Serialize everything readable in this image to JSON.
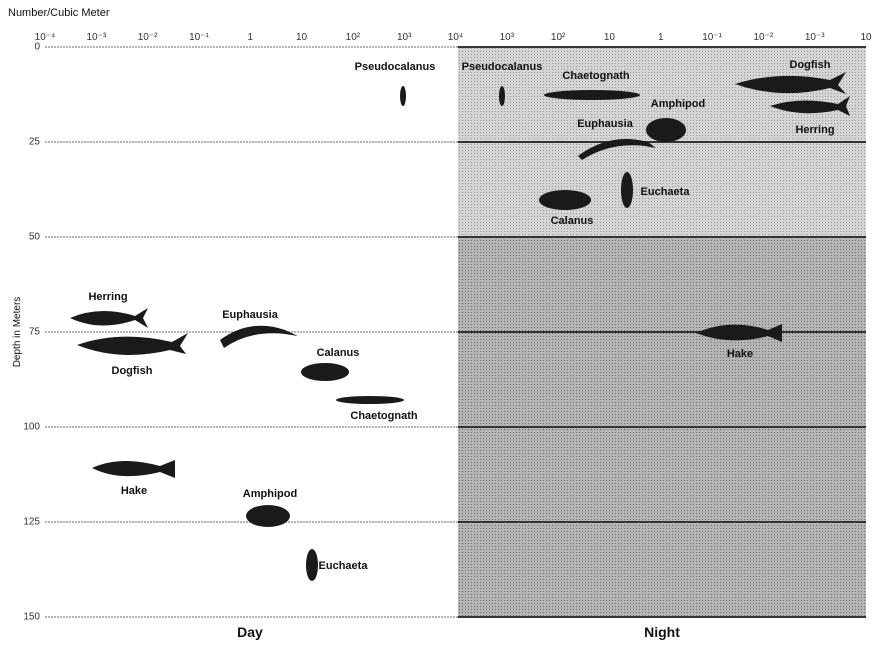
{
  "axis_top": {
    "label": "Number/Cubic Meter",
    "ticks": [
      "10⁻⁴",
      "10⁻³",
      "10⁻²",
      "10⁻¹",
      "1",
      "10",
      "10²",
      "10³",
      "10⁴",
      "10³",
      "10²",
      "10",
      "1",
      "10⁻¹",
      "10⁻²",
      "10⁻³",
      "10"
    ]
  },
  "axis_left": {
    "label": "Depth in Meters",
    "ticks": [
      "0",
      "25",
      "50",
      "75",
      "100",
      "125",
      "150"
    ]
  },
  "sections": [
    "Day",
    "Night"
  ],
  "day": {
    "organisms": [
      "Pseudocalanus",
      "Herring",
      "Dogfish",
      "Euphausia",
      "Calanus",
      "Chaetognath",
      "Hake",
      "Amphipod",
      "Euchaeta"
    ]
  },
  "night": {
    "organisms": [
      "Pseudocalanus",
      "Chaetognath",
      "Amphipod",
      "Euphausia",
      "Euchaeta",
      "Calanus",
      "Dogfish",
      "Herring",
      "Hake"
    ]
  }
}
